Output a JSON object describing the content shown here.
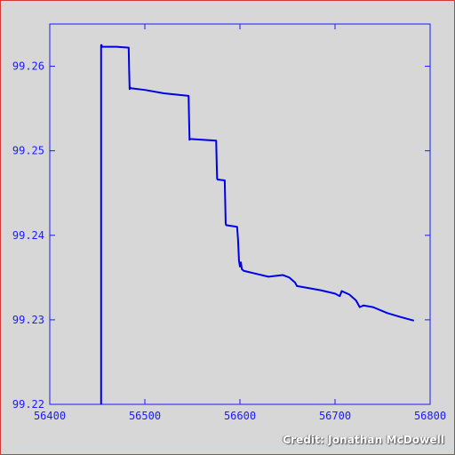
{
  "chart_data": {
    "type": "line",
    "title": "",
    "xlabel": "",
    "ylabel": "",
    "xlim": [
      56400,
      56800
    ],
    "ylim": [
      99.22,
      99.265
    ],
    "x_ticks": [
      56400,
      56500,
      56600,
      56700,
      56800
    ],
    "x_tick_labels": [
      "56400",
      "56500",
      "56600",
      "56700",
      "56800"
    ],
    "y_ticks": [
      99.22,
      99.23,
      99.24,
      99.25,
      99.26
    ],
    "y_tick_labels": [
      "99.22",
      "99.23",
      "99.24",
      "99.25",
      "99.26"
    ],
    "grid": false,
    "series": [
      {
        "color": "#0000e6",
        "x": [
          56454,
          56454,
          56454.5,
          56455,
          56470,
          56483,
          56483.5,
          56484,
          56484.5,
          56485,
          56500,
          56520,
          56546,
          56546.5,
          56547,
          56547.5,
          56560,
          56575,
          56575.5,
          56576,
          56576.5,
          56584,
          56584.5,
          56585,
          56585.5,
          56597,
          56598,
          56599,
          56600,
          56601,
          56602,
          56604,
          56615,
          56630,
          56645,
          56652,
          56658,
          56660,
          56670,
          56685,
          56700,
          56705,
          56707,
          56715,
          56722,
          56726,
          56730,
          56740,
          56755,
          56770,
          56783
        ],
        "y": [
          99.22,
          99.2625,
          99.2625,
          99.2623,
          99.2623,
          99.2622,
          99.2595,
          99.2573,
          99.2575,
          99.2574,
          99.2572,
          99.2568,
          99.2565,
          99.2538,
          99.2513,
          99.2514,
          99.2513,
          99.2512,
          99.2488,
          99.2467,
          99.2466,
          99.2465,
          99.244,
          99.2414,
          99.2412,
          99.241,
          99.2395,
          99.237,
          99.2363,
          99.2368,
          99.236,
          99.2358,
          99.2355,
          99.2351,
          99.2353,
          99.235,
          99.2344,
          99.234,
          99.2338,
          99.2335,
          99.2331,
          99.2328,
          99.2334,
          99.233,
          99.2323,
          99.2315,
          99.2317,
          99.2315,
          99.2308,
          99.2303,
          99.2299
        ]
      }
    ]
  },
  "credit": "Credit: Jonathan McDowell"
}
